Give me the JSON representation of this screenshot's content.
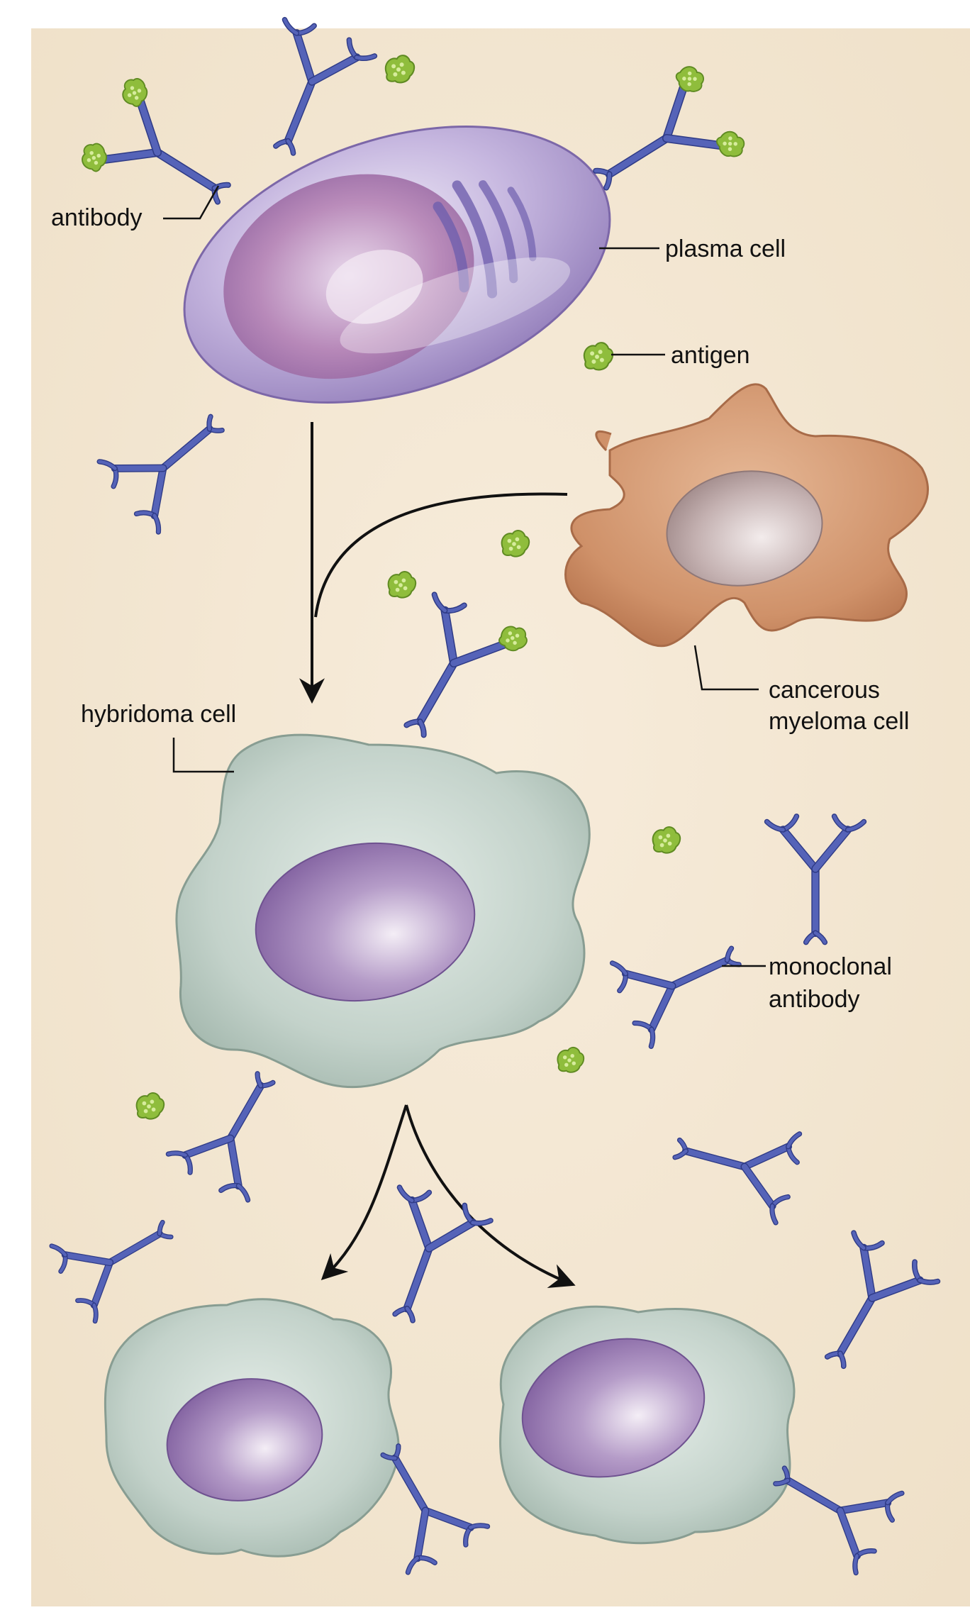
{
  "labels": {
    "antibody": "antibody",
    "plasma_cell": "plasma cell",
    "antigen": "antigen",
    "myeloma_line1": "cancerous",
    "myeloma_line2": "myeloma cell",
    "hybridoma_cell": "hybridoma cell",
    "monoclonal_line1": "monoclonal",
    "monoclonal_line2": "antibody"
  },
  "colors": {
    "background": "#f3e6d3",
    "antibody": "#5563b8",
    "antigen": "#8fbd3c",
    "plasma_cell": "#9c86c4",
    "myeloma_cell": "#c98a5e",
    "hybridoma_cell": "#b9c9c1",
    "nucleus": "#8c6aa8",
    "arrow": "#111111"
  },
  "icons": {
    "antibody": "y-shaped-antibody-icon",
    "antigen": "antigen-blob-icon"
  }
}
